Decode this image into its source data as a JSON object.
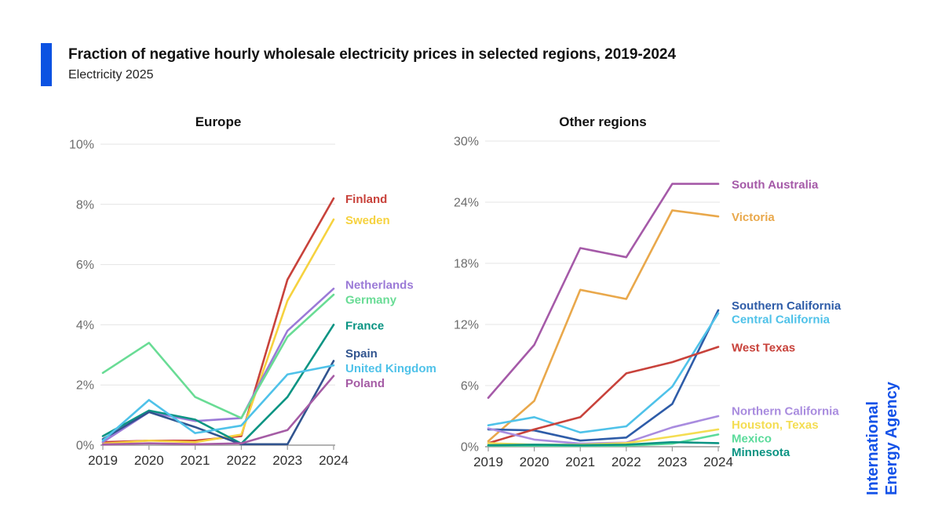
{
  "page": {
    "title": "Fraction of negative hourly wholesale electricity prices in selected regions, 2019-2024",
    "subtitle": "Electricity 2025",
    "accent_color": "#0C52E2",
    "logo_line1": "International",
    "logo_line2": "Energy Agency",
    "logo_color": "#1452E8"
  },
  "chart_data": [
    {
      "type": "line",
      "title": "Europe",
      "x": [
        2019,
        2020,
        2021,
        2022,
        2023,
        2024
      ],
      "xlabel": "",
      "ylabel": "",
      "ytick_suffix": "%",
      "ylim": [
        0,
        10
      ],
      "yticks": [
        0,
        2,
        4,
        6,
        8,
        10
      ],
      "grid": true,
      "legend_position": "right",
      "series": [
        {
          "name": "Finland",
          "color": "#C8423B",
          "values": [
            0.1,
            0.15,
            0.15,
            0.3,
            5.5,
            8.2
          ]
        },
        {
          "name": "Sweden",
          "color": "#F6D23F",
          "values": [
            0.05,
            0.15,
            0.1,
            0.35,
            4.8,
            7.5
          ]
        },
        {
          "name": "Netherlands",
          "color": "#9B7AD7",
          "values": [
            0.1,
            1.1,
            0.8,
            0.9,
            3.8,
            5.2
          ]
        },
        {
          "name": "Germany",
          "color": "#69DC95",
          "values": [
            2.4,
            3.4,
            1.6,
            0.9,
            3.6,
            5.0
          ]
        },
        {
          "name": "France",
          "color": "#0B9483",
          "values": [
            0.3,
            1.15,
            0.85,
            0.05,
            1.6,
            4.0
          ]
        },
        {
          "name": "Spain",
          "color": "#31548F",
          "values": [
            0.2,
            1.1,
            0.6,
            0.03,
            0.03,
            2.8
          ]
        },
        {
          "name": "United Kingdom",
          "color": "#4FC2E9",
          "values": [
            0.15,
            1.5,
            0.4,
            0.65,
            2.35,
            2.65
          ]
        },
        {
          "name": "Poland",
          "color": "#A55CA5",
          "values": [
            0.02,
            0.06,
            0.03,
            0.06,
            0.5,
            2.3
          ]
        }
      ]
    },
    {
      "type": "line",
      "title": "Other regions",
      "x": [
        2019,
        2020,
        2021,
        2022,
        2023,
        2024
      ],
      "xlabel": "",
      "ylabel": "",
      "ytick_suffix": "%",
      "ylim": [
        0,
        30
      ],
      "yticks": [
        0,
        6,
        12,
        18,
        24,
        30
      ],
      "grid": true,
      "legend_position": "right",
      "series": [
        {
          "name": "South Australia",
          "color": "#A55AA8",
          "values": [
            4.8,
            10.0,
            19.5,
            18.6,
            25.8,
            25.8
          ]
        },
        {
          "name": "Victoria",
          "color": "#E9A84B",
          "values": [
            0.55,
            4.5,
            15.4,
            14.5,
            23.2,
            22.6
          ]
        },
        {
          "name": "Southern California",
          "color": "#2E5CA8",
          "values": [
            1.7,
            1.6,
            0.6,
            0.9,
            4.2,
            13.4
          ]
        },
        {
          "name": "Central California",
          "color": "#4FC2E9",
          "values": [
            2.1,
            2.9,
            1.4,
            2.0,
            5.9,
            13.1
          ]
        },
        {
          "name": "West Texas",
          "color": "#C8423B",
          "values": [
            0.35,
            1.7,
            2.9,
            7.2,
            8.3,
            9.8
          ]
        },
        {
          "name": "Northern California",
          "color": "#A98CDF",
          "values": [
            1.8,
            0.7,
            0.3,
            0.4,
            1.9,
            3.0
          ]
        },
        {
          "name": "Houston, Texas",
          "color": "#F4DD52",
          "values": [
            0.35,
            0.2,
            0.2,
            0.35,
            1.0,
            1.7
          ]
        },
        {
          "name": "Mexico",
          "color": "#5BDB9B",
          "values": [
            0.1,
            0.1,
            0.08,
            0.1,
            0.3,
            1.2
          ]
        },
        {
          "name": "Minnesota",
          "color": "#0B9483",
          "values": [
            0.15,
            0.2,
            0.15,
            0.2,
            0.45,
            0.35
          ]
        }
      ]
    }
  ]
}
